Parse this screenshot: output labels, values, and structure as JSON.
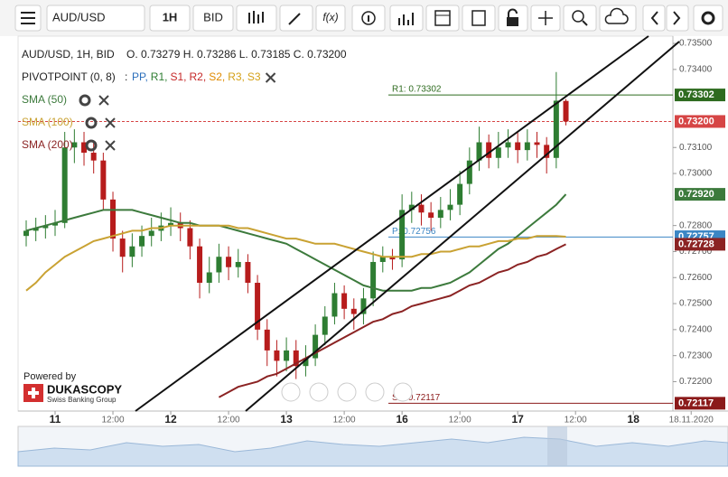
{
  "toolbar": {
    "symbol": "AUD/USD",
    "period": "1H",
    "side": "BID",
    "fx": "f(x)"
  },
  "chart_data": {
    "type": "candlestick",
    "title": "AUD/USD, 1H, BID",
    "ohlc_text": "O. 0.73279 H. 0.73286 L. 0.73185 C. 0.73200",
    "pivot_title": "PIVOTPOINT (0, 8)",
    "pivot_prefix": ":",
    "pivot_items": [
      {
        "text": "PP,",
        "color": "#2a6ebb"
      },
      {
        "text": "R1,",
        "color": "#2e7d32"
      },
      {
        "text": "S1,",
        "color": "#c62828"
      },
      {
        "text": "R2,",
        "color": "#c62828"
      },
      {
        "text": "S2,",
        "color": "#e08a00"
      },
      {
        "text": "R3,",
        "color": "#d4a017"
      },
      {
        "text": "S3",
        "color": "#d4a017"
      }
    ],
    "x_labels": [
      "11",
      "12:00",
      "12",
      "12:00",
      "13",
      "12:00",
      "16",
      "12:00",
      "17",
      "12:00",
      "18",
      "18.11.2020"
    ],
    "ylim": [
      0.72087,
      0.73528
    ],
    "yticks": [
      {
        "value": 0.735,
        "label": "0.73500"
      },
      {
        "value": 0.734,
        "label": "0.73400"
      },
      {
        "value": 0.731,
        "label": "0.73100"
      },
      {
        "value": 0.73,
        "label": "0.73000"
      },
      {
        "value": 0.728,
        "label": "0.72800"
      },
      {
        "value": 0.727,
        "label": "0.72700"
      },
      {
        "value": 0.726,
        "label": "0.72600"
      },
      {
        "value": 0.725,
        "label": "0.72500"
      },
      {
        "value": 0.724,
        "label": "0.72400"
      },
      {
        "value": 0.723,
        "label": "0.72300"
      },
      {
        "value": 0.722,
        "label": "0.72200"
      }
    ],
    "up_color": "#2e7d32",
    "down_color": "#b71c1c",
    "open": [
      0.7276,
      0.7278,
      0.7279,
      0.728,
      0.7281,
      0.731,
      0.7312,
      0.7308,
      0.7305,
      0.729,
      0.7275,
      0.7268,
      0.7272,
      0.7276,
      0.7278,
      0.728,
      0.7281,
      0.7279,
      0.7272,
      0.7258,
      0.7262,
      0.7268,
      0.7264,
      0.7266,
      0.7258,
      0.724,
      0.7232,
      0.7228,
      0.7232,
      0.7226,
      0.7229,
      0.7238,
      0.7245,
      0.7254,
      0.7248,
      0.7246,
      0.7252,
      0.7266,
      0.7268,
      0.7267,
      0.7286,
      0.7288,
      0.7285,
      0.7283,
      0.7286,
      0.7288,
      0.7296,
      0.7305,
      0.7312,
      0.7306,
      0.731,
      0.7312,
      0.7309,
      0.7312,
      0.7311,
      0.7306,
      0.73279
    ],
    "high": [
      0.7282,
      0.7283,
      0.7284,
      0.7286,
      0.7316,
      0.7317,
      0.7316,
      0.7312,
      0.7308,
      0.7293,
      0.7278,
      0.7277,
      0.728,
      0.7283,
      0.7285,
      0.7287,
      0.7285,
      0.7282,
      0.7275,
      0.7268,
      0.7273,
      0.7272,
      0.7271,
      0.7269,
      0.7261,
      0.7244,
      0.7236,
      0.7237,
      0.7236,
      0.7234,
      0.7242,
      0.7249,
      0.7258,
      0.7257,
      0.7252,
      0.7256,
      0.727,
      0.7272,
      0.7271,
      0.7292,
      0.7293,
      0.7292,
      0.7289,
      0.7291,
      0.7294,
      0.7301,
      0.731,
      0.7318,
      0.7315,
      0.7316,
      0.7317,
      0.7316,
      0.7317,
      0.7316,
      0.7314,
      0.7339,
      0.73286
    ],
    "low": [
      0.7272,
      0.7274,
      0.7275,
      0.7276,
      0.7279,
      0.7304,
      0.7303,
      0.73,
      0.7286,
      0.727,
      0.7262,
      0.7264,
      0.7268,
      0.7272,
      0.7274,
      0.7276,
      0.7274,
      0.7267,
      0.7252,
      0.7254,
      0.7258,
      0.7259,
      0.726,
      0.7254,
      0.7236,
      0.7226,
      0.7222,
      0.7224,
      0.7221,
      0.7222,
      0.7226,
      0.7234,
      0.7242,
      0.7244,
      0.724,
      0.7242,
      0.7249,
      0.7262,
      0.7263,
      0.7264,
      0.7281,
      0.728,
      0.7278,
      0.7279,
      0.7282,
      0.7284,
      0.7292,
      0.7301,
      0.7302,
      0.7302,
      0.7306,
      0.7304,
      0.7305,
      0.7306,
      0.73,
      0.7302,
      0.73185
    ],
    "close": [
      0.7278,
      0.7279,
      0.728,
      0.7281,
      0.731,
      0.7312,
      0.7308,
      0.7305,
      0.729,
      0.7275,
      0.7268,
      0.7272,
      0.7276,
      0.7278,
      0.728,
      0.7281,
      0.7279,
      0.7272,
      0.7258,
      0.7262,
      0.7268,
      0.7264,
      0.7266,
      0.7258,
      0.724,
      0.7232,
      0.7228,
      0.7232,
      0.7226,
      0.7229,
      0.7238,
      0.7245,
      0.7254,
      0.7248,
      0.7246,
      0.7252,
      0.7266,
      0.7268,
      0.7267,
      0.7286,
      0.7288,
      0.7285,
      0.7283,
      0.7286,
      0.7288,
      0.7296,
      0.7305,
      0.7312,
      0.7306,
      0.731,
      0.7312,
      0.7309,
      0.7312,
      0.7311,
      0.7306,
      0.7328,
      0.732
    ],
    "series": [
      {
        "name": "SMA (50)",
        "color": "#3c7a3c",
        "values": [
          0.7278,
          0.7279,
          0.728,
          0.7281,
          0.7282,
          0.7283,
          0.7284,
          0.7285,
          0.7286,
          0.7286,
          0.7286,
          0.7286,
          0.7285,
          0.7284,
          0.7283,
          0.7282,
          0.7281,
          0.7281,
          0.728,
          0.728,
          0.728,
          0.7279,
          0.7278,
          0.7277,
          0.7276,
          0.7275,
          0.7274,
          0.7273,
          0.7271,
          0.7269,
          0.7267,
          0.7265,
          0.7263,
          0.7261,
          0.7259,
          0.7257,
          0.7256,
          0.7255,
          0.7255,
          0.7255,
          0.7255,
          0.7256,
          0.7256,
          0.7257,
          0.7258,
          0.726,
          0.7262,
          0.7265,
          0.7268,
          0.7271,
          0.7273,
          0.7276,
          0.7279,
          0.7282,
          0.7285,
          0.7288,
          0.7292
        ]
      },
      {
        "name": "SMA (100)",
        "color": "#c9a233",
        "values": [
          0.7255,
          0.7258,
          0.7262,
          0.7265,
          0.7268,
          0.727,
          0.7272,
          0.7274,
          0.7275,
          0.7276,
          0.7277,
          0.7278,
          0.7278,
          0.7279,
          0.7279,
          0.728,
          0.728,
          0.728,
          0.728,
          0.728,
          0.728,
          0.728,
          0.7279,
          0.7279,
          0.7278,
          0.7277,
          0.7276,
          0.7275,
          0.7275,
          0.7274,
          0.7273,
          0.7273,
          0.7273,
          0.7272,
          0.7271,
          0.727,
          0.7269,
          0.7268,
          0.7268,
          0.7268,
          0.7268,
          0.7269,
          0.7269,
          0.727,
          0.727,
          0.7271,
          0.7272,
          0.7272,
          0.7273,
          0.7274,
          0.7274,
          0.7275,
          0.7275,
          0.7276,
          0.7276,
          0.7276,
          0.72757
        ]
      },
      {
        "name": "SMA (200)",
        "color": "#8b2323",
        "values": [
          null,
          null,
          null,
          null,
          null,
          null,
          null,
          null,
          null,
          null,
          null,
          null,
          null,
          null,
          null,
          null,
          null,
          null,
          null,
          null,
          0.7214,
          0.7216,
          0.7218,
          0.7219,
          0.722,
          0.7222,
          0.7223,
          0.7225,
          0.7227,
          0.7229,
          0.7231,
          0.7233,
          0.7235,
          0.7237,
          0.7239,
          0.7241,
          0.7243,
          0.7244,
          0.7246,
          0.7247,
          0.7249,
          0.725,
          0.7251,
          0.7252,
          0.7253,
          0.7255,
          0.7257,
          0.7258,
          0.726,
          0.7262,
          0.7263,
          0.7265,
          0.7266,
          0.7268,
          0.7269,
          0.7271,
          0.72728
        ]
      }
    ],
    "levels": [
      {
        "label": "R1: 0.73302",
        "value": 0.73302,
        "color": "#2e6b1f"
      },
      {
        "label": "P: 0.72756",
        "value": 0.72756,
        "color": "#3b86c4"
      },
      {
        "label": "S1: 0.72117",
        "value": 0.72117,
        "color": "#8b1a1a"
      }
    ],
    "current": {
      "value": 0.732,
      "color": "#d64545"
    },
    "price_badges": [
      {
        "value": 0.73302,
        "label": "0.73302",
        "color": "#2e6b1f"
      },
      {
        "value": 0.732,
        "label": "0.73200",
        "color": "#d64545"
      },
      {
        "value": 0.7292,
        "label": "0.72920",
        "color": "#3c7a3c"
      },
      {
        "value": 0.72757,
        "label": "0.72757",
        "color": "#3b86c4"
      },
      {
        "value": 0.72728,
        "label": "0.72728",
        "color": "#8b2323"
      },
      {
        "value": 0.72117,
        "label": "0.72117",
        "color": "#8b1a1a"
      }
    ]
  },
  "branding": {
    "powered": "Powered by",
    "name": "DUKASCOPY",
    "tagline": "Swiss Banking Group"
  }
}
